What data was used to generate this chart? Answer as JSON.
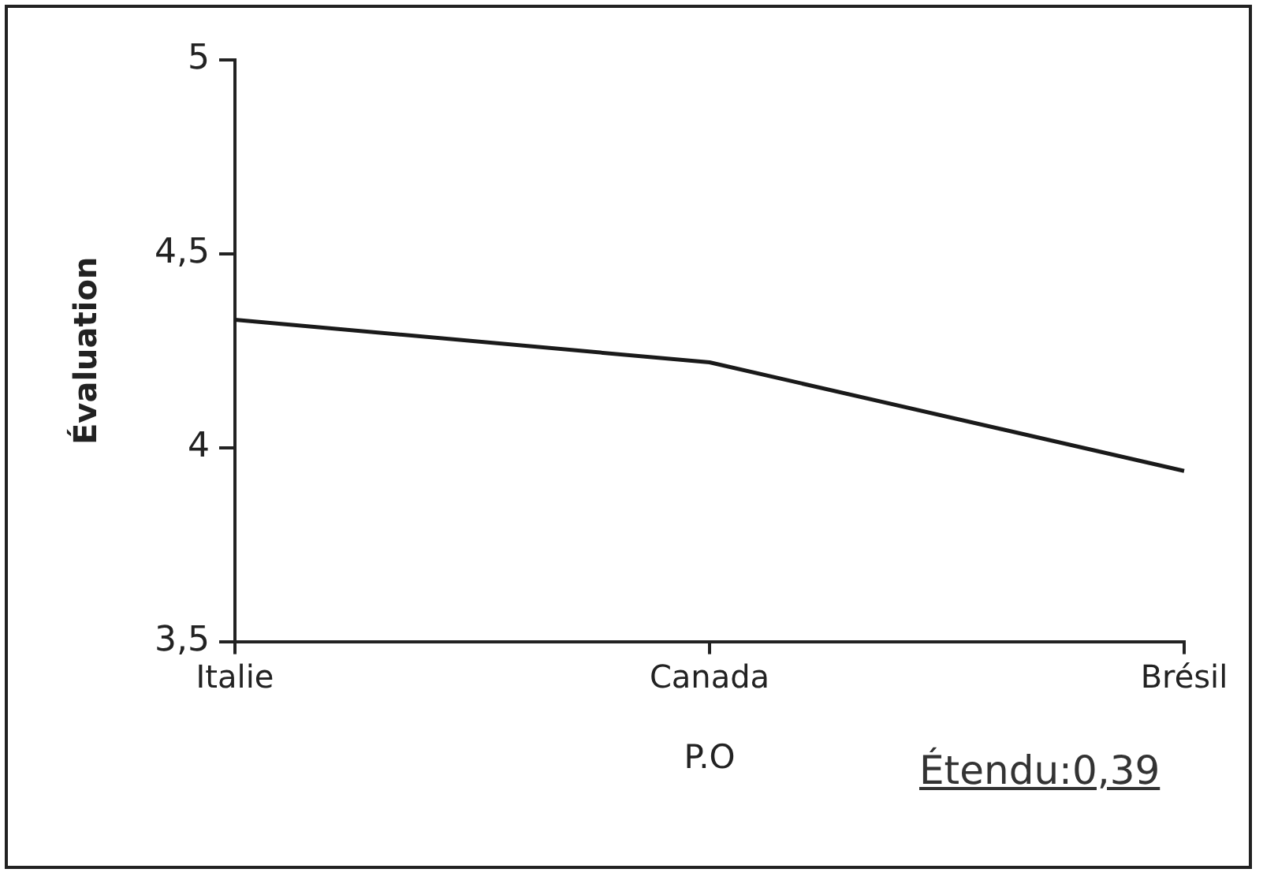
{
  "chart_data": {
    "type": "line",
    "xlabel": "P.O",
    "ylabel": "Évaluation",
    "categories": [
      "Italie",
      "Canada",
      "Brésil"
    ],
    "series": [
      {
        "color": "#1a1a1a",
        "values": [
          4.33,
          4.22,
          3.94
        ]
      }
    ],
    "ylim": [
      3.5,
      5
    ],
    "yticks": [
      {
        "value": 3.5,
        "label": "3,5"
      },
      4,
      {
        "value": 4.5,
        "label": "4,5"
      },
      5
    ],
    "grid": false,
    "legend": false,
    "marker": "none",
    "line_style": "solid",
    "annotations": [
      "Étendu:0,39"
    ]
  }
}
